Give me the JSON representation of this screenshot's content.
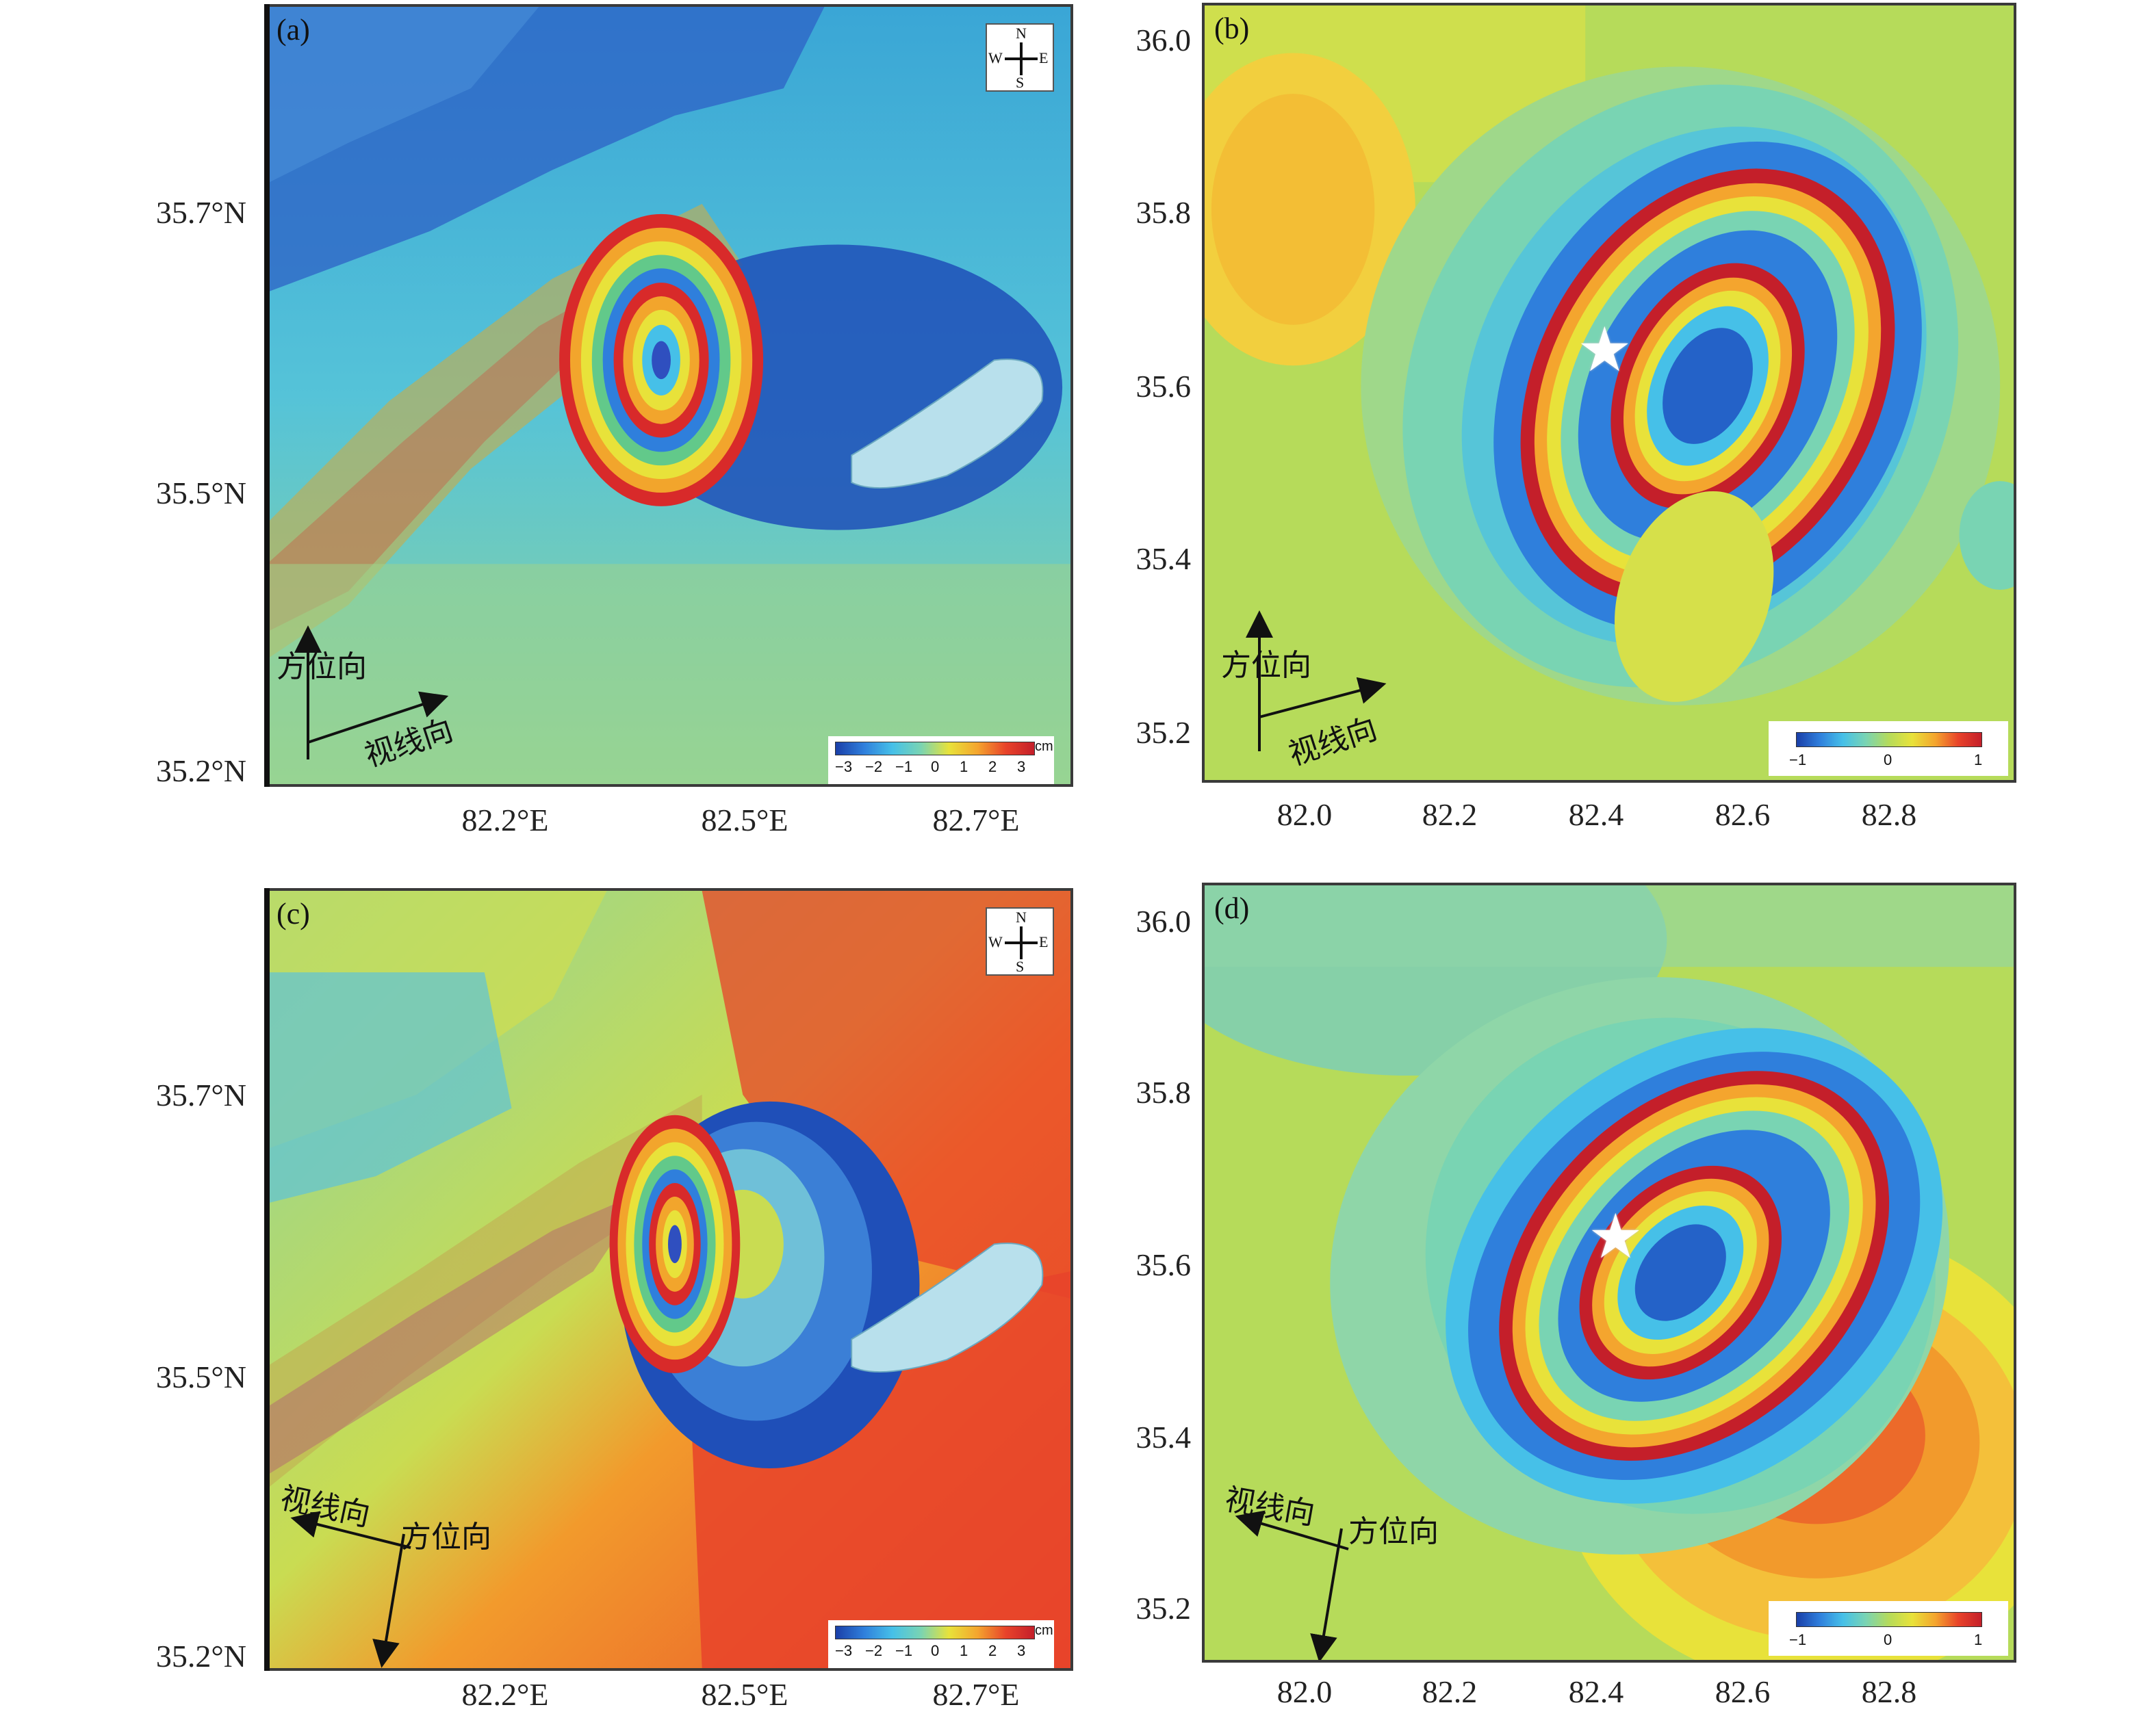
{
  "panels": {
    "a": {
      "label": "(a)"
    },
    "b": {
      "label": "(b)"
    },
    "c": {
      "label": "(c)"
    },
    "d": {
      "label": "(d)"
    }
  },
  "axes_obs": {
    "y_ticks": [
      "35.7°N",
      "35.5°N",
      "35.2°N"
    ],
    "x_ticks": [
      "82.2°E",
      "82.5°E",
      "82.7°E"
    ]
  },
  "axes_model": {
    "y_ticks": [
      "36.0",
      "35.8",
      "35.6",
      "35.4",
      "35.2"
    ],
    "x_ticks": [
      "82.0",
      "82.2",
      "82.4",
      "82.6",
      "82.8"
    ]
  },
  "compass": {
    "n": "N",
    "s": "S",
    "e": "E",
    "w": "W"
  },
  "colorbar_obs": {
    "ticks": [
      "−3",
      "−2",
      "−1",
      "0",
      "1",
      "2",
      "3"
    ],
    "unit": "cm"
  },
  "colorbar_model": {
    "ticks": [
      "−1",
      "0",
      "1"
    ]
  },
  "directions": {
    "azimuth": "方位向",
    "los": "视线向"
  },
  "colors": {
    "cmap": [
      "#1a3fa8",
      "#2f7fdc",
      "#46c0e8",
      "#79d4b3",
      "#b6db5a",
      "#e8e23a",
      "#f4a52e",
      "#e8432a",
      "#c41f2a"
    ],
    "lake": "#b8e0ec"
  },
  "icons": [
    "compass-rose-icon",
    "epicenter-star-icon",
    "arrow-icon"
  ]
}
